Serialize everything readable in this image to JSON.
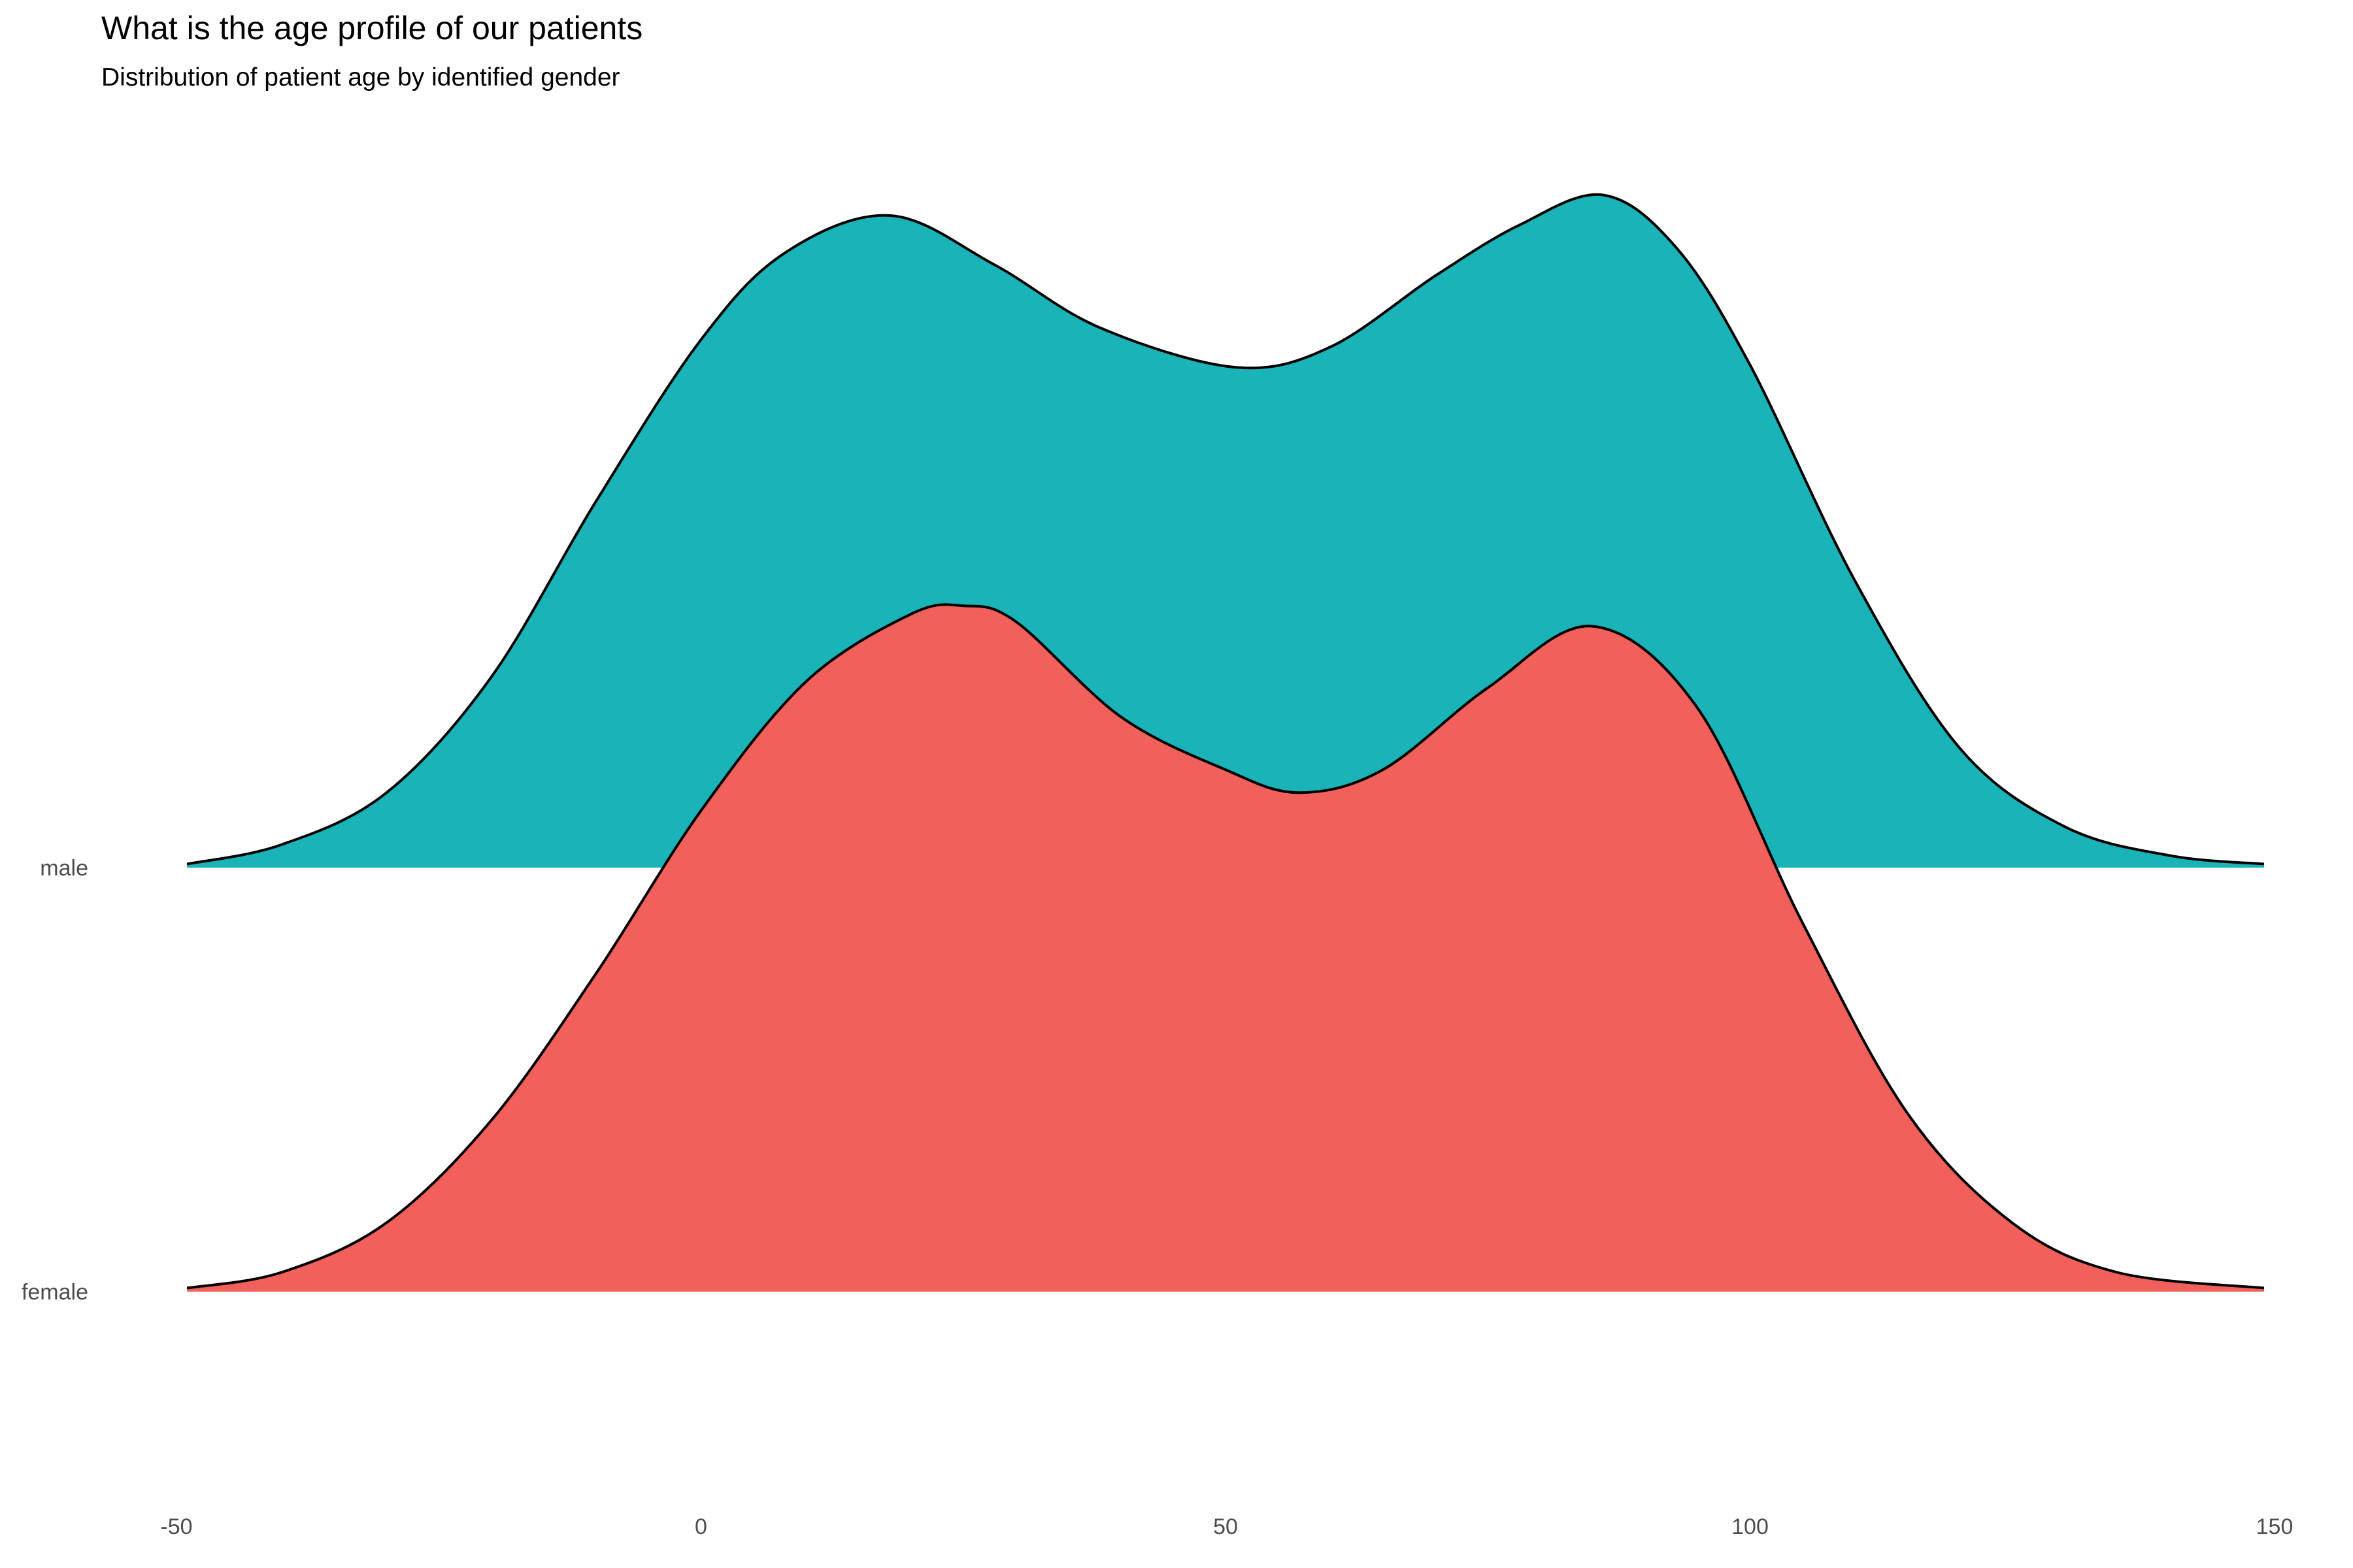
{
  "chart_data": {
    "type": "area",
    "subtype": "ridgeline-density",
    "title": "What is the age profile of our patients",
    "subtitle": "Distribution of patient age by identified gender",
    "xlabel": "",
    "ylabel": "",
    "xlim": [
      -50,
      150
    ],
    "x_ticks": [
      "-50",
      "0",
      "50",
      "100",
      "150"
    ],
    "grid": false,
    "legend": "none",
    "categories": [
      "female",
      "male"
    ],
    "series": [
      {
        "name": "female",
        "color": "#F2605C",
        "x": [
          -49,
          -40,
          -30,
          -20,
          -10,
          0,
          10,
          20,
          25,
          30,
          40,
          50,
          57,
          65,
          75,
          85,
          95,
          105,
          115,
          125,
          135,
          149
        ],
        "density": [
          0.0003,
          0.0016,
          0.0057,
          0.0142,
          0.0264,
          0.0399,
          0.0506,
          0.0562,
          0.0569,
          0.0556,
          0.0477,
          0.0433,
          0.0414,
          0.0433,
          0.0501,
          0.0552,
          0.0484,
          0.0306,
          0.0148,
          0.0057,
          0.0016,
          0.0003
        ]
      },
      {
        "name": "male",
        "color": "#1AB3B8",
        "x": [
          -49,
          -40,
          -30,
          -20,
          -10,
          0,
          8,
          18,
          28,
          38,
          51,
          60,
          70,
          78,
          86,
          93,
          100,
          110,
          120,
          130,
          140,
          149
        ],
        "density": [
          0.0003,
          0.0019,
          0.0062,
          0.0158,
          0.0304,
          0.0438,
          0.051,
          0.0541,
          0.05,
          0.0448,
          0.0415,
          0.0432,
          0.0491,
          0.0533,
          0.0558,
          0.0514,
          0.0417,
          0.0238,
          0.0099,
          0.0034,
          0.001,
          0.0003
        ]
      }
    ]
  }
}
